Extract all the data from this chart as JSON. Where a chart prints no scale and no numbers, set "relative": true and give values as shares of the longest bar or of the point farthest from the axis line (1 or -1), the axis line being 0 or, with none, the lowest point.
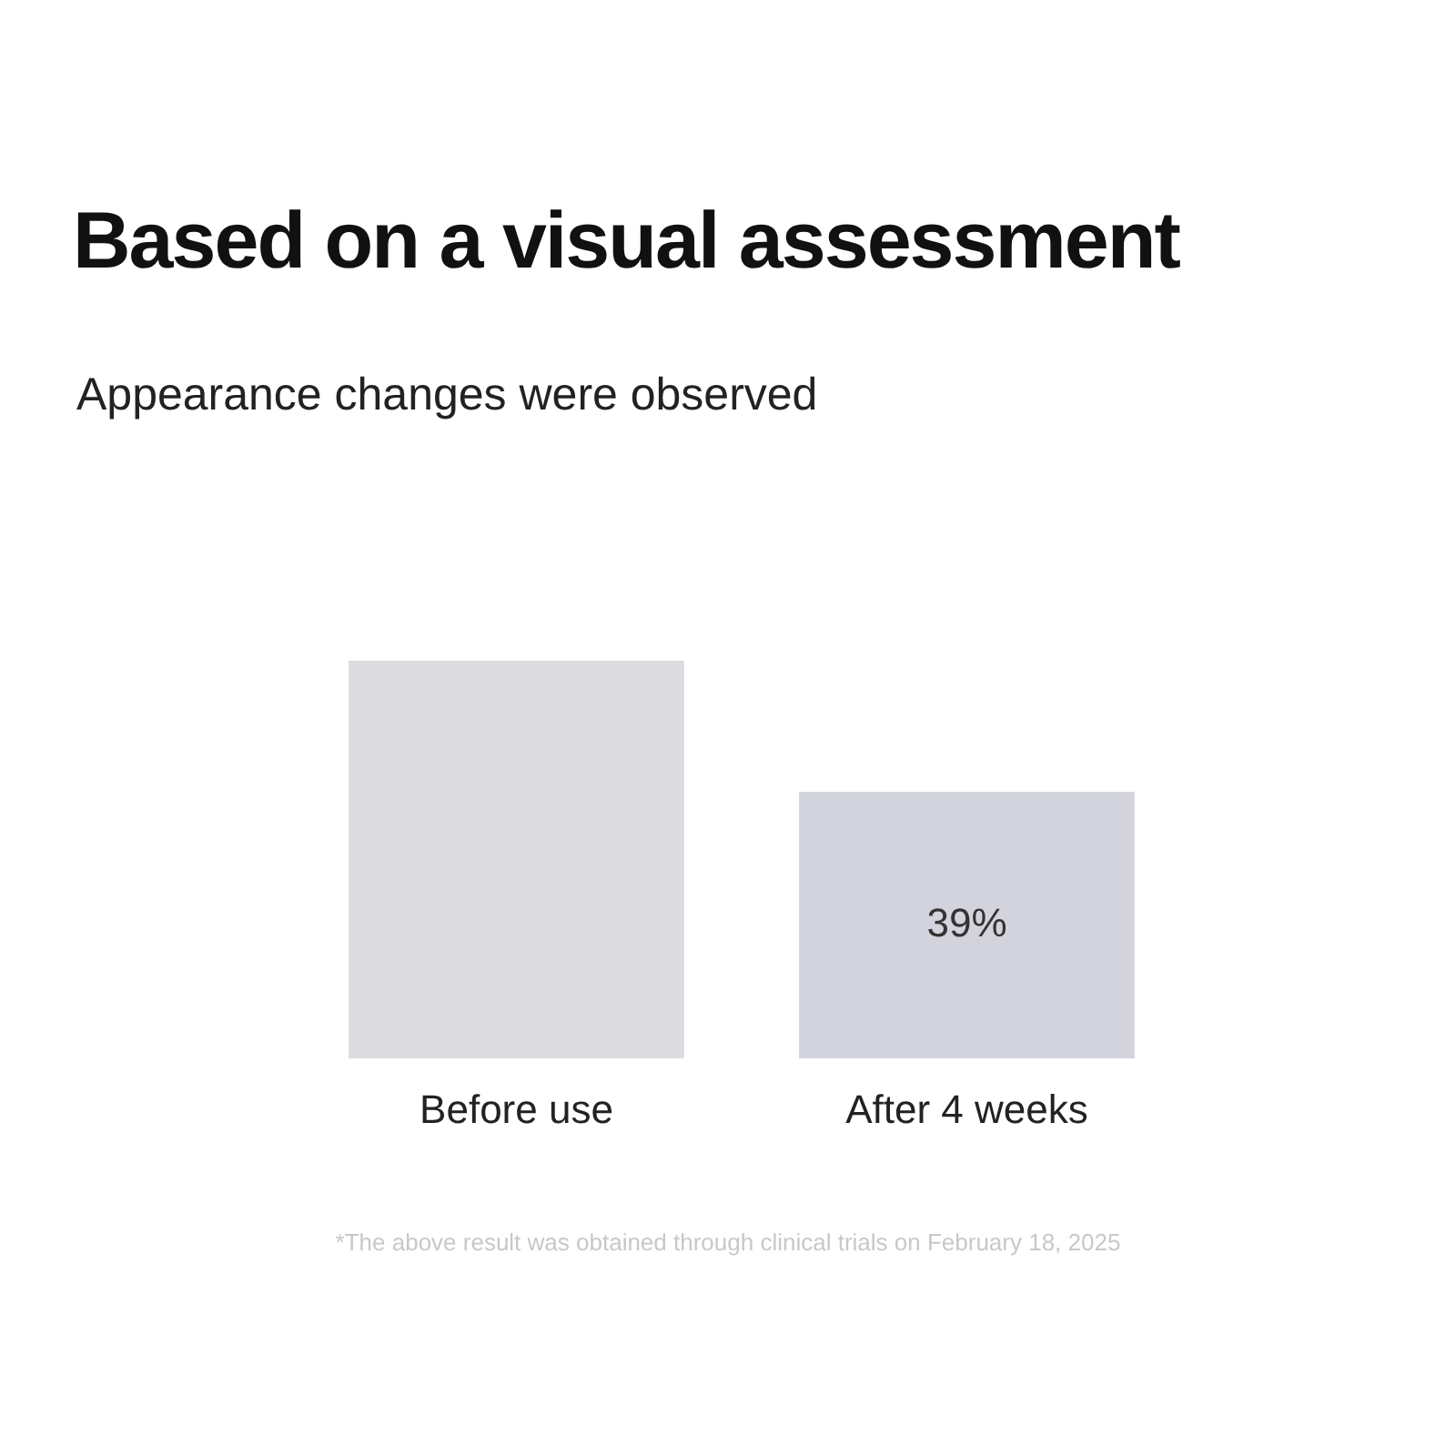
{
  "chart_data": {
    "type": "bar",
    "title": "Based on a visual assessment",
    "subtitle": "Appearance changes were observed",
    "categories": [
      "Before use",
      "After 4 weeks"
    ],
    "values": [
      1,
      0.67
    ],
    "colors": [
      "#dcdce0",
      "#d3d3dd"
    ],
    "relative": true,
    "grid": false,
    "legend": false,
    "annotations": [
      "39%",
      "*The above result was obtained through clinical trials on February 18, 2025"
    ]
  }
}
